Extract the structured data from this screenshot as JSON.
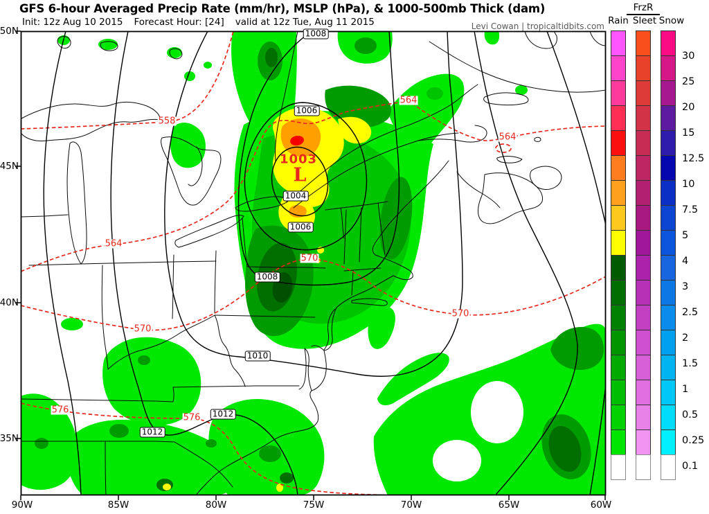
{
  "header": {
    "title": "GFS 6-hour Averaged Precip Rate (mm/hr), MSLP (hPa), & 1000-500mb Thick (dam)",
    "init": "Init: 12z Aug 10 2015",
    "fhour": "Forecast Hour: [24]",
    "valid": "valid at 12z Tue, Aug 11 2015",
    "credit": "Levi Cowan | tropicaltidbits.com"
  },
  "axes": {
    "lat_labels": [
      "50N",
      "45N",
      "40N",
      "35N"
    ],
    "lon_labels": [
      "90W",
      "85W",
      "80W",
      "75W",
      "70W",
      "65W",
      "60W"
    ]
  },
  "low_marker": {
    "pressure": "1003",
    "symbol": "L"
  },
  "map": {
    "mslp_labels": [
      {
        "text": "1008"
      },
      {
        "text": "1006"
      },
      {
        "text": "1004"
      },
      {
        "text": "1006"
      },
      {
        "text": "1008"
      },
      {
        "text": "1010"
      },
      {
        "text": "1012"
      },
      {
        "text": "1012"
      }
    ],
    "thickness_labels": [
      {
        "text": "558"
      },
      {
        "text": "564"
      },
      {
        "text": "564"
      },
      {
        "text": "564"
      },
      {
        "text": "570"
      },
      {
        "text": "570"
      },
      {
        "text": "570"
      },
      {
        "text": "576"
      },
      {
        "text": "576"
      }
    ]
  },
  "legend": {
    "frzr_label": "FrzR",
    "columns": [
      {
        "name": "Rain",
        "colors": [
          "#ff55ff",
          "#ff44cc",
          "#ff3a9d",
          "#ff2e55",
          "#fb0f0f",
          "#ff7d1f",
          "#ffa01f",
          "#ffc81f",
          "#ffff00",
          "#005a00",
          "#006e00",
          "#008200",
          "#009600",
          "#00aa00",
          "#00be00",
          "#00d200",
          "#00e600",
          "#ffffff"
        ]
      },
      {
        "name": "Sleet",
        "colors": [
          "#f84f1d",
          "#e8432a",
          "#dd3b38",
          "#d23346",
          "#c72c55",
          "#bd2663",
          "#b22072",
          "#a81a80",
          "#a0179a",
          "#ab22ab",
          "#b731b7",
          "#c340c3",
          "#ce50ce",
          "#d75fd7",
          "#e070e0",
          "#e881e8",
          "#f193f1",
          "#ffffff"
        ]
      },
      {
        "name": "Snow",
        "colors": [
          "#fb0c84",
          "#d61787",
          "#a51890",
          "#5c1ba0",
          "#2f1cac",
          "#0707b0",
          "#0b2fc4",
          "#0b45d2",
          "#0b55dc",
          "#1766e0",
          "#0b78e6",
          "#0a8cec",
          "#00a0f0",
          "#00b4f2",
          "#00c8f6",
          "#00dcfa",
          "#00f0ff",
          "#ffffff"
        ]
      }
    ],
    "values": [
      "30",
      "25",
      "20",
      "15",
      "12.5",
      "10",
      "7.5",
      "5",
      "4",
      "3",
      "2.5",
      "2",
      "1.5",
      "1",
      "0.5",
      "0.25",
      "0.1"
    ]
  },
  "colors": {
    "thickness_contour": "#e8281e",
    "mslp_contour": "#000000",
    "precip_green_light": "#00e800",
    "precip_green_mid": "#00c400",
    "precip_green_dark": "#009b00",
    "precip_green_vdark": "#006f00",
    "precip_green_deepest": "#015001",
    "precip_yellow": "#ffff00",
    "precip_orange": "#ffa000",
    "precip_red": "#f40000"
  }
}
